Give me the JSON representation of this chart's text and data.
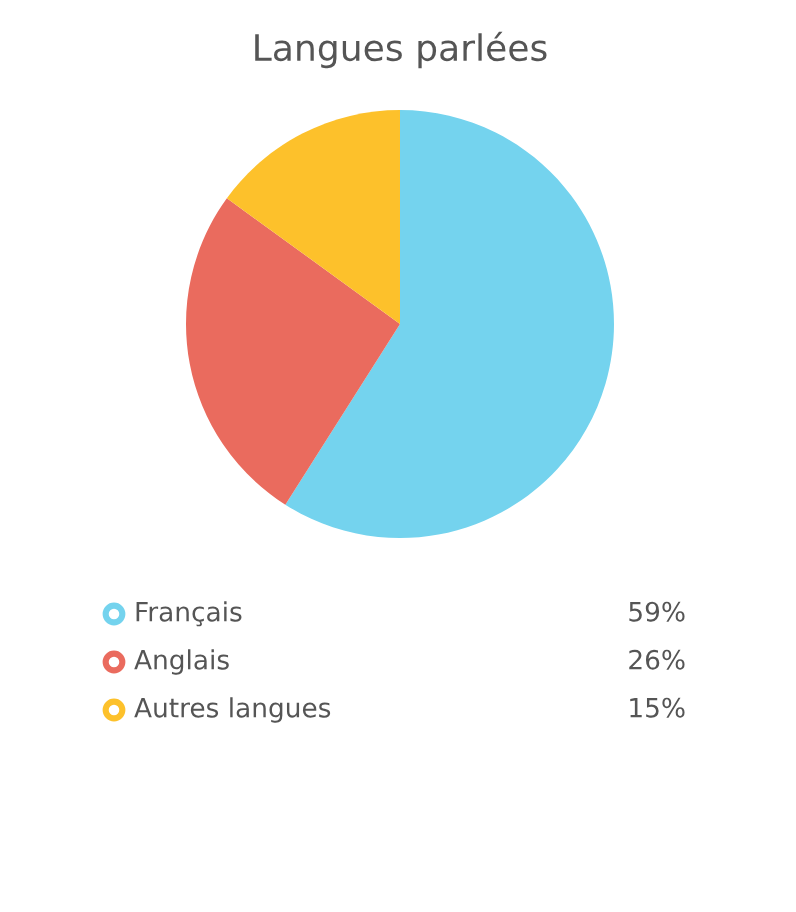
{
  "chart_data": {
    "type": "pie",
    "title": "Langues parlées",
    "categories": [
      "Français",
      "Anglais",
      "Autres langues"
    ],
    "values": [
      59,
      26,
      15
    ],
    "colors": [
      "#74d3ee",
      "#ea6b5e",
      "#fdc12b"
    ],
    "value_labels": [
      "59%",
      "26%",
      "15%"
    ],
    "legend": "bottom"
  }
}
